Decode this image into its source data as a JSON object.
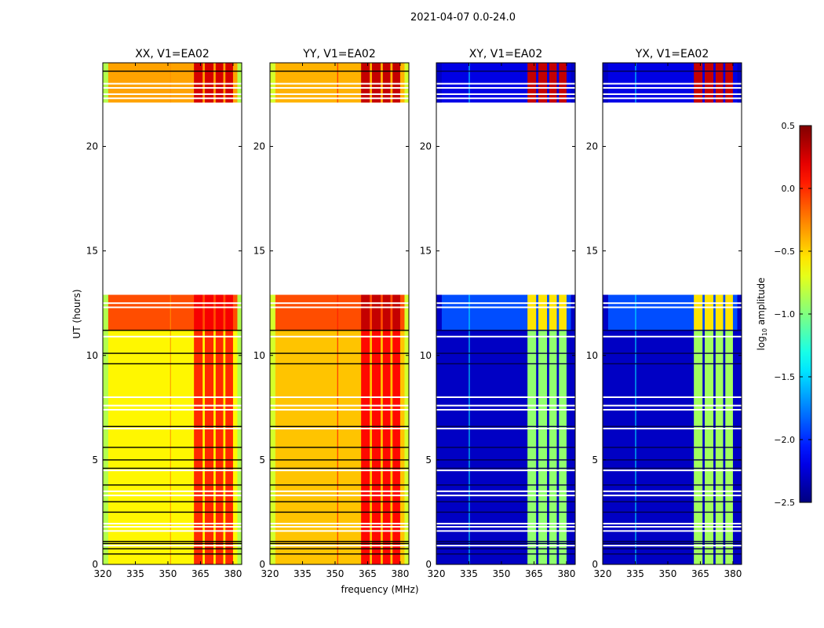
{
  "chart_data": {
    "type": "heatmap",
    "title": "2021-04-07 0.0-24.0",
    "xlabel": "frequency (MHz)",
    "ylabel": "UT (hours)",
    "xlim": [
      320,
      384
    ],
    "ylim": [
      0,
      24
    ],
    "xticks": [
      320,
      335,
      350,
      365,
      380
    ],
    "yticks": [
      0,
      5,
      10,
      15,
      20
    ],
    "colorbar": {
      "label": "log10 amplitude",
      "label_main": "log",
      "label_sub": "10",
      "label_rest": " amplitude",
      "range": [
        -2.5,
        0.5
      ],
      "ticks": [
        0.5,
        0.0,
        -0.5,
        -1.0,
        -1.5,
        -2.0,
        -2.5
      ],
      "tick_labels": [
        "0.5",
        "0.0",
        "−0.5",
        "−1.0",
        "−1.5",
        "−2.0",
        "−2.5"
      ],
      "colormap": "jet"
    },
    "rfi_bands_mhz": [
      [
        362,
        366
      ],
      [
        367,
        371
      ],
      [
        372,
        375.5
      ],
      [
        376.5,
        380
      ]
    ],
    "flagged_rows_white": [
      0.9,
      1.6,
      1.8,
      1.95,
      3.3,
      3.5,
      4.5,
      6.5,
      7.4,
      7.6,
      8.0,
      10.9,
      12.3,
      12.5,
      22.3,
      22.5,
      22.8,
      23.0
    ],
    "dark_rows": [
      0.5,
      0.75,
      1.0,
      1.1,
      2.5,
      3.0,
      3.8,
      4.6,
      5.0,
      5.6,
      6.6,
      9.6,
      10.1,
      11.2,
      23.6
    ],
    "panels": [
      {
        "title": "XX, V1=EA02",
        "edge": -0.85,
        "vline": {
          "mhz": 351,
          "value": -0.3
        },
        "blocks": [
          {
            "t": [
              0,
              11.2
            ],
            "base": -0.6,
            "band": 0.0
          },
          {
            "t": [
              11.2,
              12.9
            ],
            "base": -0.1,
            "band": 0.15
          },
          {
            "t": [
              22.1,
              24
            ],
            "base": -0.35,
            "band": 0.25
          }
        ]
      },
      {
        "title": "YY, V1=EA02",
        "edge": -0.75,
        "vline": {
          "mhz": 351,
          "value": 0.05
        },
        "blocks": [
          {
            "t": [
              0,
              11.2
            ],
            "base": -0.45,
            "band": 0.1
          },
          {
            "t": [
              11.2,
              12.9
            ],
            "base": -0.1,
            "band": 0.3
          },
          {
            "t": [
              22.1,
              24
            ],
            "base": -0.4,
            "band": 0.3
          }
        ]
      },
      {
        "title": "XY, V1=EA02",
        "edge": -2.3,
        "vline": {
          "mhz": 335,
          "value": -1.4
        },
        "blocks": [
          {
            "t": [
              0,
              11.2
            ],
            "base": -2.3,
            "band": -0.95
          },
          {
            "t": [
              11.2,
              12.9
            ],
            "base": -1.9,
            "band": -0.55
          },
          {
            "t": [
              22.1,
              24
            ],
            "base": -2.2,
            "band": 0.3
          }
        ]
      },
      {
        "title": "YX, V1=EA02",
        "edge": -2.3,
        "vline": {
          "mhz": 335,
          "value": -1.4
        },
        "blocks": [
          {
            "t": [
              0,
              11.2
            ],
            "base": -2.3,
            "band": -0.9
          },
          {
            "t": [
              11.2,
              12.9
            ],
            "base": -1.9,
            "band": -0.55
          },
          {
            "t": [
              22.1,
              24
            ],
            "base": -2.2,
            "band": 0.3
          }
        ]
      }
    ]
  }
}
